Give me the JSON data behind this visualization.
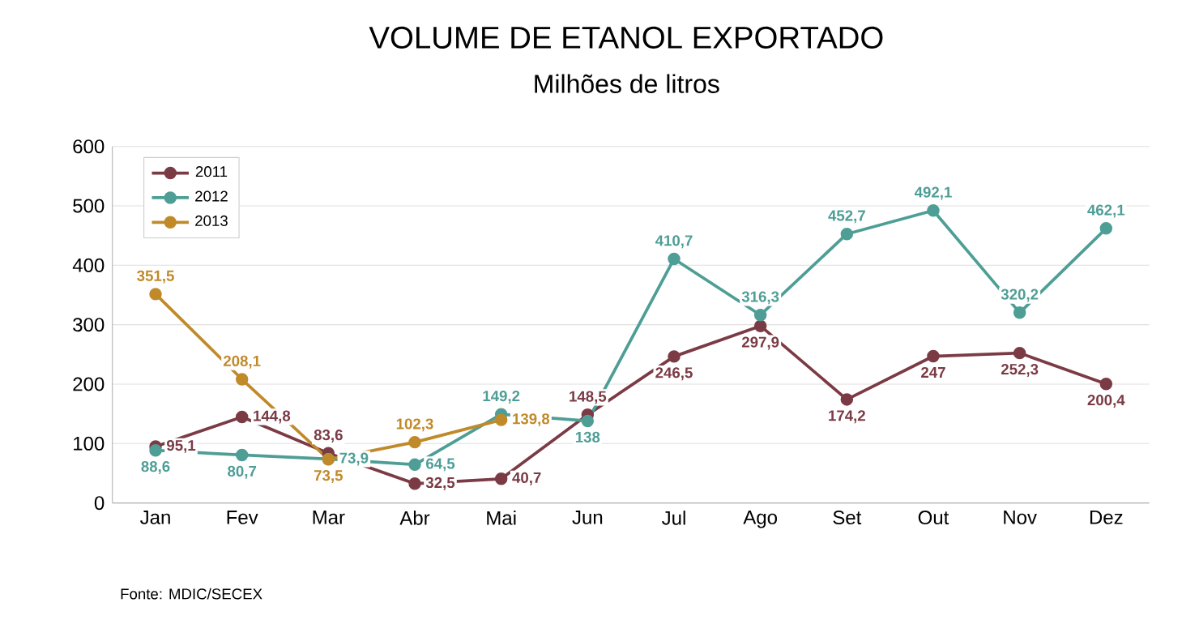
{
  "chart_data": {
    "type": "line",
    "title": "VOLUME DE ETANOL EXPORTADO",
    "subtitle": "Milhões de litros",
    "categories": [
      "Jan",
      "Fev",
      "Mar",
      "Abr",
      "Mai",
      "Jun",
      "Jul",
      "Ago",
      "Set",
      "Out",
      "Nov",
      "Dez"
    ],
    "series": [
      {
        "name": "2011",
        "color": "#7b3b45",
        "values": [
          95.1,
          144.8,
          83.6,
          32.5,
          40.7,
          148.5,
          246.5,
          297.9,
          174.2,
          247,
          252.3,
          200.4
        ],
        "value_labels": [
          "95,1",
          "144,8",
          "83,6",
          "32,5",
          "40,7",
          "148,5",
          "246,5",
          "297,9",
          "174,2",
          "247",
          "252,3",
          "200,4"
        ]
      },
      {
        "name": "2012",
        "color": "#4e9e96",
        "values": [
          88.6,
          80.7,
          73.9,
          64.5,
          149.2,
          138,
          410.7,
          316.3,
          452.7,
          492.1,
          320.2,
          462.1
        ],
        "value_labels": [
          "88,6",
          "80,7",
          "73,9",
          "64,5",
          "149,2",
          "138",
          "410,7",
          "316,3",
          "452,7",
          "492,1",
          "320,2",
          "462,1"
        ]
      },
      {
        "name": "2013",
        "color": "#c08a2a",
        "values": [
          351.5,
          208.1,
          73.5,
          102.3,
          139.8,
          null,
          null,
          null,
          null,
          null,
          null,
          null
        ],
        "value_labels": [
          "351,5",
          "208,1",
          "73,5",
          "102,3",
          "139,8",
          null,
          null,
          null,
          null,
          null,
          null,
          null
        ]
      }
    ],
    "ylim": [
      0,
      600
    ],
    "yticks": [
      0,
      100,
      200,
      300,
      400,
      500,
      600
    ],
    "grid": "y",
    "legend": "top left",
    "marker": "circle",
    "line_style": "solid",
    "annotations": [
      "Fonte: MDIC/SECEX"
    ]
  }
}
